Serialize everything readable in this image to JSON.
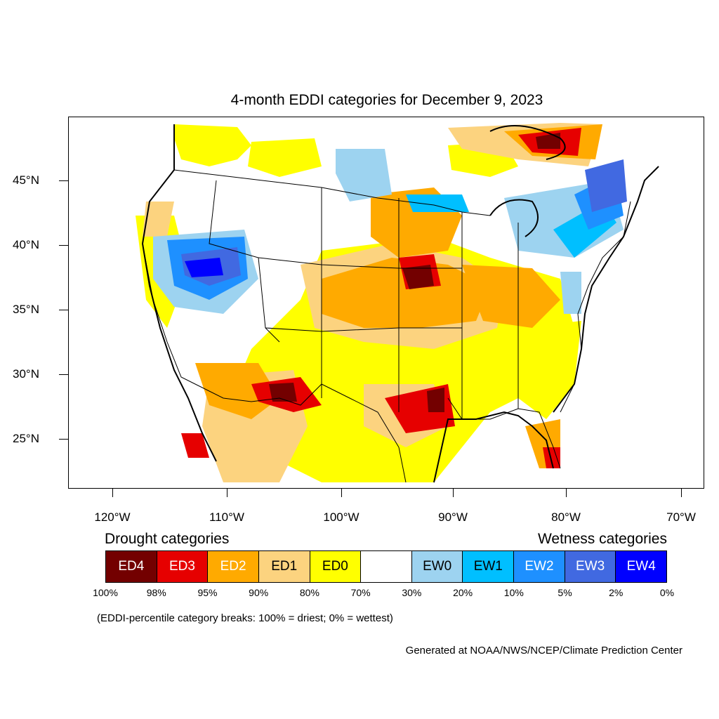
{
  "title": "4-month EDDI categories for December 9, 2023",
  "lat_labels": [
    "45°N",
    "40°N",
    "35°N",
    "30°N",
    "25°N"
  ],
  "lon_labels": [
    "120°W",
    "110°W",
    "100°W",
    "90°W",
    "80°W",
    "70°W"
  ],
  "legend": {
    "drought_heading": "Drought categories",
    "wetness_heading": "Wetness categories",
    "categories": [
      {
        "label": "ED4",
        "color": "#730000",
        "text_color": "#ffffff"
      },
      {
        "label": "ED3",
        "color": "#e60000",
        "text_color": "#ffffff"
      },
      {
        "label": "ED2",
        "color": "#ffaa00",
        "text_color": "#ffffff"
      },
      {
        "label": "ED1",
        "color": "#fcd37f",
        "text_color": "#000000"
      },
      {
        "label": "ED0",
        "color": "#ffff00",
        "text_color": "#000000"
      },
      {
        "label": "",
        "color": "#ffffff",
        "text_color": "#000000"
      },
      {
        "label": "EW0",
        "color": "#9dd3f0",
        "text_color": "#000000"
      },
      {
        "label": "EW1",
        "color": "#00bfff",
        "text_color": "#000000"
      },
      {
        "label": "EW2",
        "color": "#1e90ff",
        "text_color": "#ffffff"
      },
      {
        "label": "EW3",
        "color": "#4169e1",
        "text_color": "#ffffff"
      },
      {
        "label": "EW4",
        "color": "#0000ff",
        "text_color": "#ffffff"
      }
    ],
    "percentile_breaks": [
      "100%",
      "98%",
      "95%",
      "90%",
      "80%",
      "70%",
      "30%",
      "20%",
      "10%",
      "5%",
      "2%",
      "0%"
    ]
  },
  "note": "(EDDI-percentile category breaks: 100% = driest; 0% = wettest)",
  "credit": "Generated at NOAA/NWS/NCEP/Climate Prediction Center"
}
